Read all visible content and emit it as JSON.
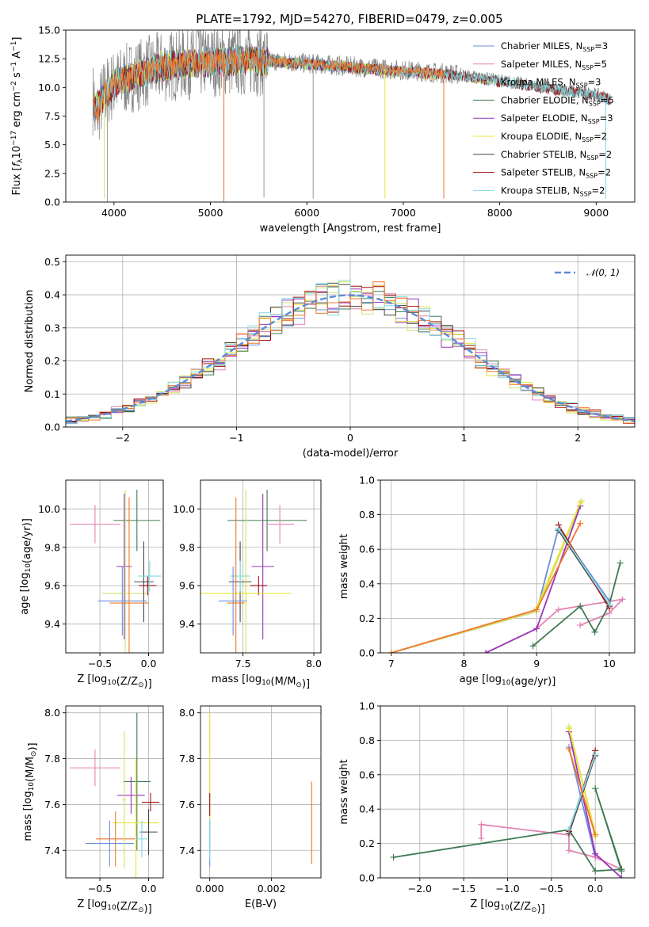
{
  "title": "PLATE=1792, MJD=54270, FIBERID=0479, z=0.005",
  "colors": {
    "Chabrier MILES": "#6b8fdc",
    "Salpeter MILES": "#e484b4",
    "Kroupa MILES": "#cfe26a",
    "Chabrier ELODIE": "#3f7a52",
    "Salpeter ELODIE": "#9b33b8",
    "Kroupa ELODIE": "#e8e43a",
    "Chabrier STELIB": "#444444",
    "Salpeter STELIB": "#a01010",
    "Kroupa STELIB": "#7fdbe3",
    "data": "#808080",
    "orange": "#f0782a",
    "normal": "#5b8bd8"
  },
  "chart_data": [
    {
      "id": "spectrum",
      "type": "line",
      "xlabel": "wavelength [Angstrom, rest frame]",
      "ylabel": "Flux [f_λ10^-17 erg cm^-2 s^-1 A^-1]",
      "xlim": [
        3500,
        9400
      ],
      "ylim": [
        0,
        15
      ],
      "xticks": [
        4000,
        5000,
        6000,
        7000,
        8000,
        9000
      ],
      "yticks": [
        0.0,
        2.5,
        5.0,
        7.5,
        10.0,
        12.5,
        15.0
      ],
      "grid": false,
      "legend_position": "upper-right",
      "legend": [
        {
          "imf": "Chabrier MILES",
          "nssp": "3"
        },
        {
          "imf": "Salpeter MILES",
          "nssp": "5"
        },
        {
          "imf": "Kroupa MILES",
          "nssp": "3"
        },
        {
          "imf": "Chabrier ELODIE",
          "nssp": "5"
        },
        {
          "imf": "Salpeter ELODIE",
          "nssp": "3"
        },
        {
          "imf": "Kroupa ELODIE",
          "nssp": "2"
        },
        {
          "imf": "Chabrier STELIB",
          "nssp": "2"
        },
        {
          "imf": "Salpeter STELIB",
          "nssp": "2"
        },
        {
          "imf": "Kroupa STELIB",
          "nssp": "2"
        }
      ],
      "continuum": [
        [
          3800,
          7.2
        ],
        [
          3900,
          9.5
        ],
        [
          4000,
          10.2
        ],
        [
          4200,
          11.0
        ],
        [
          4500,
          11.8
        ],
        [
          5000,
          12.3
        ],
        [
          5500,
          12.4
        ],
        [
          6000,
          12.1
        ],
        [
          6500,
          11.8
        ],
        [
          7000,
          11.5
        ],
        [
          7500,
          11.2
        ],
        [
          8000,
          10.6
        ],
        [
          8500,
          10.0
        ],
        [
          9000,
          9.4
        ],
        [
          9150,
          9.0
        ]
      ],
      "series": [
        {
          "name": "Chabrier MILES",
          "x": [
            3800,
            4000,
            4500,
            5000,
            5500,
            6000,
            6500,
            7000,
            7400
          ],
          "y": [
            8.2,
            10.5,
            11.9,
            12.3,
            12.4,
            12.2,
            11.8,
            11.4,
            11.1
          ]
        },
        {
          "name": "Salpeter MILES",
          "x": [
            3800,
            4000,
            4500,
            5000,
            5500,
            6000,
            6500,
            7000,
            7400
          ],
          "y": [
            8.0,
            10.4,
            11.8,
            12.2,
            12.3,
            12.1,
            11.7,
            11.3,
            11.0
          ]
        },
        {
          "name": "Kroupa MILES",
          "x": [
            3800,
            4000,
            4500,
            5000,
            5500,
            6000,
            6500,
            7000,
            7400
          ],
          "y": [
            8.1,
            10.4,
            11.8,
            12.2,
            12.3,
            12.1,
            11.8,
            11.3,
            11.0
          ]
        },
        {
          "name": "Chabrier ELODIE",
          "x": [
            3800,
            4000,
            4500,
            5000,
            5500,
            6000,
            6500,
            6800
          ],
          "y": [
            8.3,
            10.5,
            11.9,
            12.3,
            12.4,
            12.1,
            11.7,
            11.5
          ]
        },
        {
          "name": "Salpeter ELODIE",
          "x": [
            3800,
            4000,
            4500,
            5000,
            5500,
            6000,
            6500,
            6800
          ],
          "y": [
            8.2,
            10.4,
            11.8,
            12.2,
            12.3,
            12.0,
            11.7,
            11.4
          ]
        },
        {
          "name": "Kroupa ELODIE",
          "x": [
            3800,
            4000,
            4500,
            5000,
            5500,
            6000,
            6500,
            6800
          ],
          "y": [
            8.2,
            10.4,
            11.9,
            12.2,
            12.3,
            12.0,
            11.7,
            11.5
          ]
        },
        {
          "name": "Chabrier STELIB",
          "x": [
            3800,
            4000,
            4500,
            5000,
            5500,
            6000,
            6500,
            7000,
            7500,
            8000,
            8500,
            9000,
            9150
          ],
          "y": [
            8.0,
            10.3,
            11.8,
            12.2,
            12.3,
            12.0,
            11.7,
            11.4,
            11.1,
            10.5,
            9.9,
            9.3,
            8.9
          ]
        },
        {
          "name": "Salpeter STELIB",
          "x": [
            3800,
            4000,
            4500,
            5000,
            5500,
            6000,
            6500,
            7000,
            7500,
            8000,
            8500,
            9000,
            9150
          ],
          "y": [
            8.1,
            10.3,
            11.8,
            12.2,
            12.3,
            12.0,
            11.7,
            11.4,
            11.1,
            10.5,
            9.9,
            9.3,
            8.9
          ]
        },
        {
          "name": "Kroupa STELIB",
          "x": [
            3800,
            4000,
            4500,
            5000,
            5500,
            6000,
            6500,
            7000,
            7500,
            8000,
            8500,
            9000,
            9150
          ],
          "y": [
            8.1,
            10.3,
            11.8,
            12.2,
            12.3,
            12.0,
            11.7,
            11.4,
            11.1,
            10.6,
            9.9,
            9.3,
            8.9
          ]
        }
      ]
    },
    {
      "id": "residuals",
      "type": "step",
      "xlabel": "(data-model)/error",
      "ylabel": "Normed distribution",
      "xlim": [
        -2.5,
        2.5
      ],
      "ylim": [
        0,
        0.52
      ],
      "xticks": [
        -2,
        -1,
        0,
        1,
        2
      ],
      "yticks": [
        0.0,
        0.1,
        0.2,
        0.3,
        0.4,
        0.5
      ],
      "grid": true,
      "legend_position": "upper-right",
      "normal_label": "N(0,1)",
      "bin_width": 0.1
    },
    {
      "id": "age-vs-Z",
      "type": "errorbar",
      "xlabel": "Z [log10(Z/Z☉)]",
      "ylabel": "age [log10(age/yr)]",
      "xlim": [
        -0.85,
        0.15
      ],
      "ylim": [
        9.25,
        10.15
      ],
      "xticks": [
        -0.5,
        0.0
      ],
      "yticks": [
        9.4,
        9.6,
        9.8,
        10.0
      ],
      "grid": true,
      "points": [
        {
          "series": "Salpeter MILES",
          "x": -0.55,
          "xerr": 0.26,
          "y": 9.92,
          "yerr": 0.1
        },
        {
          "series": "Chabrier ELODIE",
          "x": -0.12,
          "xerr": 0.24,
          "y": 9.94,
          "yerr": 0.16
        },
        {
          "series": "Salpeter ELODIE",
          "x": -0.25,
          "xerr": 0.08,
          "y": 9.7,
          "yerr": 0.38
        },
        {
          "series": "Kroupa MILES",
          "x": -0.24,
          "xerr": 0.24,
          "y": 9.56,
          "yerr": 0.54
        },
        {
          "series": "Chabrier STELIB",
          "x": -0.05,
          "xerr": 0.1,
          "y": 9.62,
          "yerr": 0.21
        },
        {
          "series": "Salpeter STELIB",
          "x": -0.01,
          "xerr": 0.09,
          "y": 9.6,
          "yerr": 0.05
        },
        {
          "series": "Kroupa STELIB",
          "x": 0.01,
          "xerr": 0.12,
          "y": 9.65,
          "yerr": 0.08
        },
        {
          "series": "Chabrier MILES",
          "x": -0.27,
          "xerr": 0.25,
          "y": 9.52,
          "yerr": 0.18
        },
        {
          "series": "orange",
          "x": -0.2,
          "xerr": 0.2,
          "y": 9.51,
          "yerr": 0.55
        }
      ]
    },
    {
      "id": "age-vs-mass",
      "type": "errorbar",
      "xlabel": "mass [log10(M/M☉)]",
      "ylabel": "",
      "xlim": [
        7.2,
        8.05
      ],
      "ylim": [
        9.25,
        10.15
      ],
      "xticks": [
        7.5,
        8.0
      ],
      "yticks": [
        9.4,
        9.6,
        9.8,
        10.0
      ],
      "grid": true,
      "points": [
        {
          "series": "Chabrier ELODIE",
          "x": 7.67,
          "xerr": 0.28,
          "y": 9.94,
          "yerr": 0.16
        },
        {
          "series": "Salpeter MILES",
          "x": 7.76,
          "xerr": 0.1,
          "y": 9.92,
          "yerr": 0.1
        },
        {
          "series": "Salpeter ELODIE",
          "x": 7.64,
          "xerr": 0.08,
          "y": 9.7,
          "yerr": 0.38
        },
        {
          "series": "Kroupa MILES",
          "x": 7.52,
          "xerr": 0.14,
          "y": 9.56,
          "yerr": 0.54
        },
        {
          "series": "Chabrier STELIB",
          "x": 7.48,
          "xerr": 0.08,
          "y": 9.62,
          "yerr": 0.21
        },
        {
          "series": "Kroupa STELIB",
          "x": 7.48,
          "xerr": 0.07,
          "y": 9.65,
          "yerr": 0.08
        },
        {
          "series": "Salpeter STELIB",
          "x": 7.61,
          "xerr": 0.06,
          "y": 9.6,
          "yerr": 0.05
        },
        {
          "series": "Chabrier MILES",
          "x": 7.43,
          "xerr": 0.1,
          "y": 9.52,
          "yerr": 0.18
        },
        {
          "series": "Kroupa ELODIE",
          "x": 7.52,
          "xerr": 0.32,
          "y": 9.56,
          "yerr": 0.1
        },
        {
          "series": "orange",
          "x": 7.45,
          "xerr": 0.06,
          "y": 9.51,
          "yerr": 0.55
        }
      ]
    },
    {
      "id": "weight-vs-age",
      "type": "line",
      "xlabel": "age [log10(age/yr)]",
      "ylabel": "mass weight",
      "xlim": [
        6.85,
        10.35
      ],
      "ylim": [
        0,
        1.0
      ],
      "xticks": [
        7,
        8,
        9,
        10
      ],
      "yticks": [
        0.0,
        0.2,
        0.4,
        0.6,
        0.8,
        1.0
      ],
      "grid": true,
      "series": [
        {
          "name": "Chabrier MILES",
          "x": [
            7.0,
            9.0,
            9.3,
            10.0
          ],
          "y": [
            0.0,
            0.24,
            0.72,
            0.3
          ]
        },
        {
          "name": "Salpeter MILES",
          "x": [
            9.6,
            10.0,
            10.18,
            9.3,
            9.0
          ],
          "y": [
            0.16,
            0.23,
            0.31,
            0.25,
            0.14
          ]
        },
        {
          "name": "Kroupa MILES",
          "x": [
            7.0,
            9.0,
            9.62
          ],
          "y": [
            0.0,
            0.24,
            0.88
          ]
        },
        {
          "name": "Chabrier ELODIE",
          "x": [
            8.95,
            9.6,
            9.8,
            10.0,
            10.15
          ],
          "y": [
            0.04,
            0.27,
            0.12,
            0.28,
            0.52
          ]
        },
        {
          "name": "Salpeter ELODIE",
          "x": [
            8.3,
            9.0,
            9.6
          ],
          "y": [
            0.0,
            0.14,
            0.85
          ]
        },
        {
          "name": "Kroupa ELODIE",
          "x": [
            9.0,
            9.6
          ],
          "y": [
            0.26,
            0.87
          ]
        },
        {
          "name": "Chabrier STELIB",
          "x": [
            9.3,
            10.0
          ],
          "y": [
            0.71,
            0.27
          ]
        },
        {
          "name": "Salpeter STELIB",
          "x": [
            9.3,
            10.0
          ],
          "y": [
            0.74,
            0.26
          ]
        },
        {
          "name": "Kroupa STELIB",
          "x": [
            9.3,
            10.0
          ],
          "y": [
            0.72,
            0.28
          ]
        },
        {
          "name": "orange",
          "x": [
            7.0,
            9.0,
            9.6
          ],
          "y": [
            0.0,
            0.25,
            0.75
          ]
        }
      ]
    },
    {
      "id": "mass-vs-Z",
      "type": "errorbar",
      "xlabel": "Z [log10(Z/Z☉)]",
      "ylabel": "mass [log10(M/M☉)]",
      "xlim": [
        -0.85,
        0.15
      ],
      "ylim": [
        7.28,
        8.03
      ],
      "xticks": [
        -0.5,
        0.0
      ],
      "yticks": [
        7.4,
        7.6,
        7.8,
        8.0
      ],
      "grid": true,
      "points": [
        {
          "series": "Salpeter MILES",
          "x": -0.55,
          "xerr": 0.26,
          "y": 7.76,
          "yerr": 0.08
        },
        {
          "series": "Chabrier ELODIE",
          "x": -0.12,
          "xerr": 0.14,
          "y": 7.7,
          "yerr": 0.3
        },
        {
          "series": "Salpeter ELODIE",
          "x": -0.18,
          "xerr": 0.14,
          "y": 7.64,
          "yerr": 0.08
        },
        {
          "series": "Salpeter STELIB",
          "x": 0.02,
          "xerr": 0.09,
          "y": 7.61,
          "yerr": 0.04
        },
        {
          "series": "Kroupa ELODIE",
          "x": -0.13,
          "xerr": 0.24,
          "y": 7.52,
          "yerr": 0.28
        },
        {
          "series": "Chabrier STELIB",
          "x": 0.0,
          "xerr": 0.09,
          "y": 7.48,
          "yerr": 0.1
        },
        {
          "series": "Kroupa STELIB",
          "x": -0.07,
          "xerr": 0.06,
          "y": 7.45,
          "yerr": 0.08
        },
        {
          "series": "orange",
          "x": -0.34,
          "xerr": 0.2,
          "y": 7.45,
          "yerr": 0.12
        },
        {
          "series": "Chabrier MILES",
          "x": -0.4,
          "xerr": 0.25,
          "y": 7.43,
          "yerr": 0.1
        },
        {
          "series": "Kroupa MILES",
          "x": -0.25,
          "xerr": 0.02,
          "y": 7.62,
          "yerr": 0.3
        }
      ]
    },
    {
      "id": "mass-vs-EBV",
      "type": "errorbar",
      "xlabel": "E(B-V)",
      "ylabel": "",
      "xlim": [
        -0.0003,
        0.0036
      ],
      "ylim": [
        7.28,
        8.03
      ],
      "xticks": [
        0.0,
        0.002
      ],
      "yticks": [
        7.4,
        7.6,
        7.8,
        8.0
      ],
      "grid": true,
      "points": [
        {
          "series": "Kroupa ELODIE",
          "x": 0.0,
          "xerr": 0,
          "y": 7.75,
          "yerr": 0.25
        },
        {
          "series": "Salpeter STELIB",
          "x": 0.0,
          "xerr": 0,
          "y": 7.6,
          "yerr": 0.05
        },
        {
          "series": "Chabrier MILES",
          "x": 0.0,
          "xerr": 0,
          "y": 7.43,
          "yerr": 0.1
        },
        {
          "series": "Kroupa STELIB",
          "x": 0.0,
          "xerr": 0,
          "y": 7.45,
          "yerr": 0.09
        },
        {
          "series": "orange",
          "x": 0.0033,
          "xerr": 0,
          "y": 7.52,
          "yerr": 0.18
        }
      ]
    },
    {
      "id": "weight-vs-Z",
      "type": "line",
      "xlabel": "Z [log10(Z/Z☉)]",
      "ylabel": "mass weight",
      "xlim": [
        -2.45,
        0.45
      ],
      "ylim": [
        0,
        1.0
      ],
      "xticks": [
        -2.0,
        -1.5,
        -1.0,
        -0.5,
        0.0
      ],
      "yticks": [
        0.0,
        0.2,
        0.4,
        0.6,
        0.8,
        1.0
      ],
      "grid": true,
      "series": [
        {
          "name": "Chabrier MILES",
          "x": [
            -0.3,
            0.0
          ],
          "y": [
            0.76,
            0.12
          ]
        },
        {
          "name": "Salpeter MILES",
          "x": [
            -1.3,
            -1.3,
            -0.3,
            -0.3,
            0.0,
            0.3
          ],
          "y": [
            0.23,
            0.31,
            0.25,
            0.16,
            0.12,
            0.05
          ]
        },
        {
          "name": "Kroupa MILES",
          "x": [
            -0.3,
            0.0
          ],
          "y": [
            0.88,
            0.24
          ]
        },
        {
          "name": "Chabrier ELODIE",
          "x": [
            -2.3,
            -0.3,
            0.0,
            0.3,
            0.0,
            0.3
          ],
          "y": [
            0.12,
            0.28,
            0.04,
            0.05,
            0.52,
            0.04
          ]
        },
        {
          "name": "Salpeter ELODIE",
          "x": [
            -0.3,
            0.0,
            0.3
          ],
          "y": [
            0.85,
            0.14,
            0.0
          ]
        },
        {
          "name": "Kroupa ELODIE",
          "x": [
            -0.3,
            0.0
          ],
          "y": [
            0.87,
            0.26
          ]
        },
        {
          "name": "Chabrier STELIB",
          "x": [
            -0.3,
            0.0
          ],
          "y": [
            0.26,
            0.71
          ]
        },
        {
          "name": "Salpeter STELIB",
          "x": [
            -0.3,
            0.0
          ],
          "y": [
            0.27,
            0.74
          ]
        },
        {
          "name": "Kroupa STELIB",
          "x": [
            -0.3,
            0.0
          ],
          "y": [
            0.28,
            0.72
          ]
        },
        {
          "name": "orange",
          "x": [
            -0.3,
            0.0
          ],
          "y": [
            0.75,
            0.25
          ]
        }
      ]
    }
  ]
}
